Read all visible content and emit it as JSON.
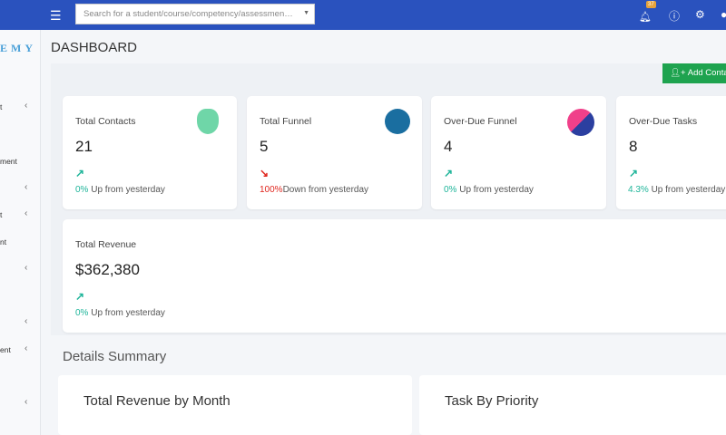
{
  "header": {
    "search_placeholder": "Search for a student/course/competency/assessment/active...",
    "notification_count": "37"
  },
  "sidebar": {
    "logo": "EMY",
    "items": [
      {
        "label": "t"
      },
      {
        "label": "ment"
      },
      {
        "label": ""
      },
      {
        "label": "t"
      },
      {
        "label": "nt"
      },
      {
        "label": ""
      },
      {
        "label": ""
      },
      {
        "label": "ent"
      },
      {
        "label": ""
      }
    ]
  },
  "page": {
    "title": "DASHBOARD",
    "add_contact": "Add Contact"
  },
  "cards": [
    {
      "label": "Total Contacts",
      "value": "21",
      "pct": "0%",
      "text": " Up from yesterday",
      "trend": "up"
    },
    {
      "label": "Total Funnel",
      "value": "5",
      "pct": "100%",
      "text": "Down from yesterday",
      "trend": "down"
    },
    {
      "label": "Over-Due Funnel",
      "value": "4",
      "pct": "0%",
      "text": " Up from yesterday",
      "trend": "up"
    },
    {
      "label": "Over-Due Tasks",
      "value": "8",
      "pct": "4.3%",
      "text": " Up from yesterday",
      "trend": "up"
    },
    {
      "label": "Total Revenue",
      "value": "$362,380",
      "pct": "0%",
      "text": " Up from yesterday",
      "trend": "up"
    }
  ],
  "details": {
    "title": "Details Summary",
    "revenue_by_month": "Total Revenue by Month",
    "task_by_priority": "Task By Priority"
  },
  "colors": {
    "header": "#2a52be",
    "up": "#1fb59a",
    "down": "#e0261e",
    "add_button": "#1ea34f"
  }
}
